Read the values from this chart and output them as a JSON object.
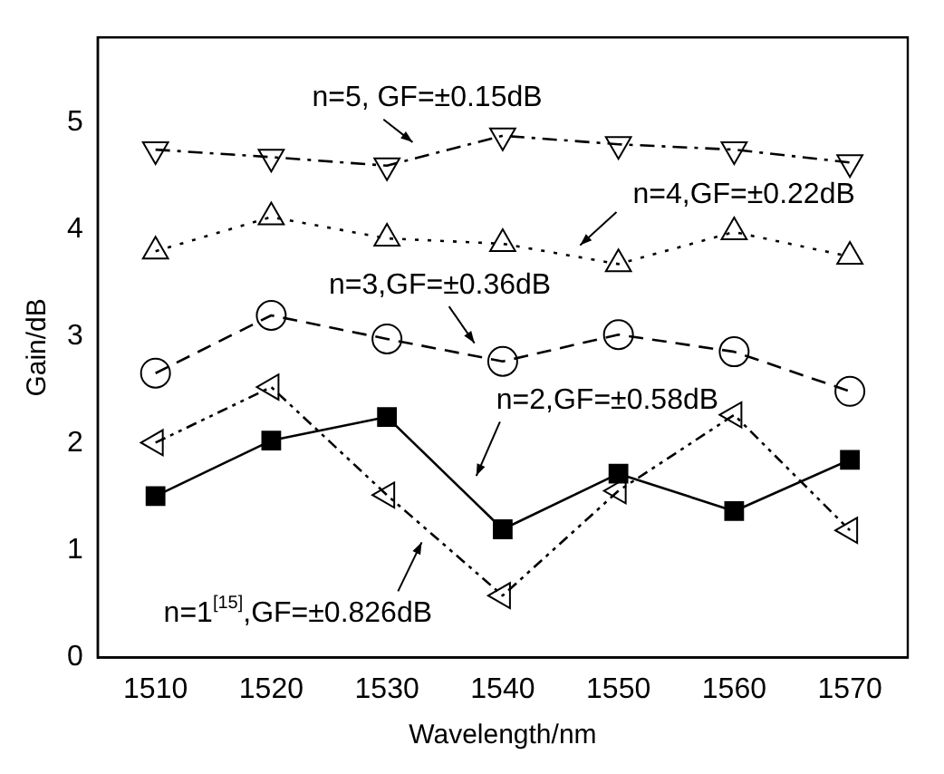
{
  "chart_data": {
    "type": "line",
    "xlabel": "Wavelength/nm",
    "ylabel": "Gain/dB",
    "x": [
      1510,
      1520,
      1530,
      1540,
      1550,
      1560,
      1570
    ],
    "xlim": [
      1505,
      1575
    ],
    "xticks": [
      1510,
      1520,
      1530,
      1540,
      1550,
      1560,
      1570
    ],
    "ylim": [
      0,
      5.8
    ],
    "yticks": [
      0,
      1,
      2,
      3,
      4,
      5
    ],
    "grid": false,
    "legend": false,
    "series": [
      {
        "color": "#000000",
        "marker": "triangle",
        "line_style": "dashed",
        "values": [
          4.75,
          4.68,
          4.6,
          4.88,
          4.8,
          4.75,
          4.63
        ]
      },
      {
        "color": "#000000",
        "marker": "triangle",
        "line_style": "dotted",
        "values": [
          3.8,
          4.12,
          3.92,
          3.87,
          3.68,
          3.98,
          3.75
        ]
      },
      {
        "color": "#000000",
        "marker": "circle",
        "line_style": "dashed",
        "values": [
          2.66,
          3.2,
          2.98,
          2.77,
          3.02,
          2.86,
          2.49
        ]
      },
      {
        "color": "#000000",
        "marker": "square",
        "line_style": "solid",
        "values": [
          1.51,
          2.03,
          2.25,
          1.2,
          1.72,
          1.37,
          1.85
        ]
      },
      {
        "color": "#000000",
        "marker": "triangle",
        "line_style": "dashed",
        "values": [
          2.01,
          2.53,
          1.52,
          0.58,
          1.56,
          2.27,
          1.19
        ]
      }
    ],
    "annotations": [
      "n=5, GF=±0.15dB",
      "n=4,GF=±0.22dB",
      "n=3,GF=±0.36dB",
      "n=2,GF=±0.58dB",
      "n=1$^{[15]}$,GF=±0.826dB"
    ]
  }
}
